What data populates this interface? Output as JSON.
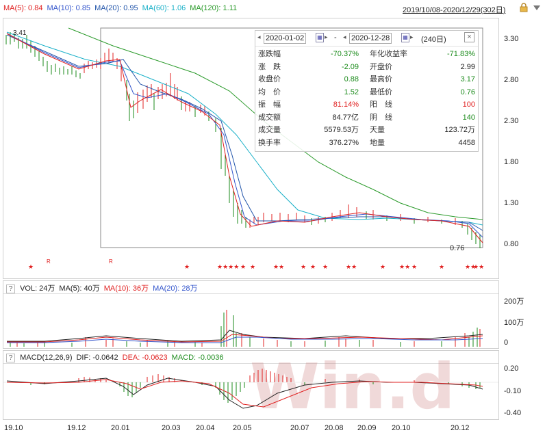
{
  "header": {
    "ma_items": [
      {
        "label": "MA(5): 0.84",
        "color": "#e02020"
      },
      {
        "label": "MA(10): 0.85",
        "color": "#3355cc"
      },
      {
        "label": "MA(20): 0.95",
        "color": "#2255aa"
      },
      {
        "label": "MA(60): 1.06",
        "color": "#19b0c8"
      },
      {
        "label": "MA(120): 1.11",
        "color": "#2a9a2a"
      }
    ],
    "date_range": "2019/10/08-2020/12/29(302日)",
    "lock_icon": "lock-icon",
    "dropdown_icon": "triangle-down-icon"
  },
  "price_axis": [
    "3.30",
    "2.80",
    "2.30",
    "1.80",
    "1.30",
    "0.80"
  ],
  "price_annotations": {
    "high": "3.41",
    "low": "0.76"
  },
  "markers": {
    "r1": "R",
    "r2": "R"
  },
  "stats_panel": {
    "start_date": "2020-01-02",
    "separator": "-",
    "end_date": "2020-12-28",
    "days": "(240日)",
    "rows": [
      {
        "l1": "涨跌幅",
        "v1": "-70.37%",
        "c1": "green",
        "l2": "年化收益率",
        "v2": "-71.83%",
        "c2": "green"
      },
      {
        "l1": "涨　跌",
        "v1": "-2.09",
        "c1": "green",
        "l2": "开盘价",
        "v2": "2.99",
        "c2": "black"
      },
      {
        "l1": "收盘价",
        "v1": "0.88",
        "c1": "green",
        "l2": "最高价",
        "v2": "3.17",
        "c2": "green"
      },
      {
        "l1": "均　价",
        "v1": "1.52",
        "c1": "green",
        "l2": "最低价",
        "v2": "0.76",
        "c2": "green"
      },
      {
        "l1": "振　幅",
        "v1": "81.14%",
        "c1": "red",
        "l2": "阳　线",
        "v2": "100",
        "c2": "red"
      },
      {
        "l1": "成交额",
        "v1": "84.77亿",
        "c1": "black",
        "l2": "阴　线",
        "v2": "140",
        "c2": "green"
      },
      {
        "l1": "成交量",
        "v1": "5579.53万",
        "c1": "black",
        "l2": "天量",
        "v2": "123.72万",
        "c2": "black"
      },
      {
        "l1": "换手率",
        "v1": "376.27%",
        "c1": "black",
        "l2": "地量",
        "v2": "4458",
        "c2": "black"
      }
    ]
  },
  "volume_panel": {
    "help": "?",
    "items": [
      {
        "label": "VOL: 24万",
        "color": "#222222"
      },
      {
        "label": "MA(5): 40万",
        "color": "#222222"
      },
      {
        "label": "MA(10): 36万",
        "color": "#e02020"
      },
      {
        "label": "MA(20): 28万",
        "color": "#3355cc"
      }
    ],
    "axis": [
      "200万",
      "100万",
      "0"
    ]
  },
  "macd_panel": {
    "help": "?",
    "items": [
      {
        "label": "MACD(12,26,9)",
        "color": "#222222"
      },
      {
        "label": "DIF: -0.0642",
        "color": "#222222"
      },
      {
        "label": "DEA: -0.0623",
        "color": "#e02020"
      },
      {
        "label": "MACD: -0.0036",
        "color": "#1a8a1a"
      }
    ],
    "axis": [
      "0.20",
      "-0.10",
      "-0.40"
    ]
  },
  "x_axis": [
    "19.10",
    "19.12",
    "20.01",
    "20.03",
    "20.04",
    "20.05",
    "20.07",
    "20.08",
    "20.09",
    "20.10",
    "20.12"
  ],
  "watermark": "Win.d"
}
